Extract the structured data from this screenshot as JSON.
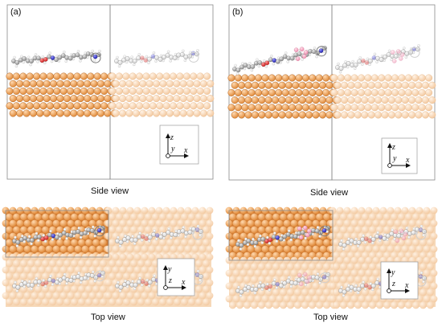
{
  "panels": [
    {
      "id": "a",
      "label": "(a)"
    },
    {
      "id": "b",
      "label": "(b)"
    }
  ],
  "captions": {
    "side_view": "Side view",
    "top_view": "Top view"
  },
  "axes": {
    "side": {
      "vertical": "z",
      "horizontal": "x",
      "depth": "y"
    },
    "top": {
      "vertical": "y",
      "horizontal": "x",
      "depth": "z"
    }
  },
  "colors": {
    "copper": "#e08a3a",
    "copper_light": "#f3c9a0",
    "carbon": "#8a8a8a",
    "hydrogen": "#e6e6e6",
    "oxygen": "#d01818",
    "nitrogen": "#1a1ab0",
    "fluorine": "#f08fb0"
  }
}
